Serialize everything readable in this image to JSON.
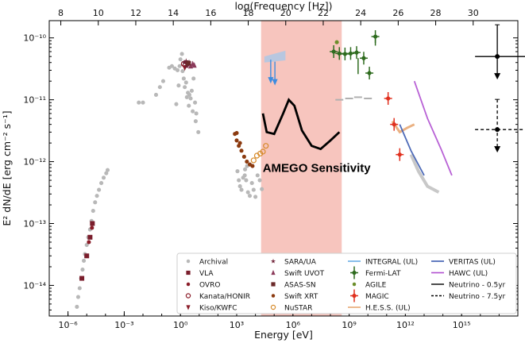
{
  "chart_data": {
    "type": "scatter",
    "xlabel": "Energy [eV]",
    "x2label": "log(Frequency [Hz])",
    "ylabel": "E² dN/dE [erg cm⁻² s⁻¹]",
    "xscale": "log",
    "yscale": "log",
    "xlim": [
      1e-07,
      1e+18
    ],
    "ylim": [
      3.2e-15,
      1.9e-10
    ],
    "x_ticks": [
      {
        "v": 1e-06,
        "label": "10⁻⁶"
      },
      {
        "v": 0.001,
        "label": "10⁻³"
      },
      {
        "v": 1.0,
        "label": "10⁰"
      },
      {
        "v": 1000.0,
        "label": "10³"
      },
      {
        "v": 1000000.0,
        "label": "10⁶"
      },
      {
        "v": 1000000000.0,
        "label": "10⁹"
      },
      {
        "v": 1000000000000.0,
        "label": "10¹²"
      },
      {
        "v": 1000000000000000.0,
        "label": "10¹⁵"
      }
    ],
    "x2_ticks": [
      "8",
      "10",
      "12",
      "14",
      "16",
      "18",
      "20",
      "22",
      "24",
      "26",
      "28",
      "30"
    ],
    "y_ticks": [
      {
        "v": 1e-14,
        "label": "10⁻¹⁴"
      },
      {
        "v": 1e-13,
        "label": "10⁻¹³"
      },
      {
        "v": 1e-12,
        "label": "10⁻¹²"
      },
      {
        "v": 1e-11,
        "label": "10⁻¹¹"
      },
      {
        "v": 1e-10,
        "label": "10⁻¹⁰"
      }
    ],
    "band": {
      "label": "AMEGO Sensitivity",
      "xmin": 20000.0,
      "xmax": 400000000.0,
      "color": "#f5b6ae"
    },
    "series": [
      {
        "name": "Archival",
        "marker": "circle",
        "color": "#b8b8b8",
        "points": [
          [
            3e-06,
            4.5e-15
          ],
          [
            3.5e-06,
            6.5e-15
          ],
          [
            4.2e-06,
            9e-15
          ],
          [
            5e-06,
            1.3e-14
          ],
          [
            6e-06,
            1.8e-14
          ],
          [
            7e-06,
            2.5e-14
          ],
          [
            8e-06,
            3.2e-14
          ],
          [
            1e-05,
            4.5e-14
          ],
          [
            1.2e-05,
            6e-14
          ],
          [
            1.5e-05,
            8e-14
          ],
          [
            1.8e-05,
            1.1e-13
          ],
          [
            2.2e-05,
            1.6e-13
          ],
          [
            2.8e-05,
            2.2e-13
          ],
          [
            3.5e-05,
            2.8e-13
          ],
          [
            4.5e-05,
            3.5e-13
          ],
          [
            6e-05,
            4.5e-13
          ],
          [
            8e-05,
            5.5e-13
          ],
          [
            0.00011,
            6.5e-13
          ],
          [
            0.00013,
            7.3e-13
          ],
          [
            0.006,
            9e-12
          ],
          [
            0.01,
            9e-12
          ],
          [
            0.05,
            1.2e-11
          ],
          [
            0.08,
            1.6e-11
          ],
          [
            0.12,
            2e-11
          ],
          [
            0.25,
            3.3e-11
          ],
          [
            0.35,
            3.5e-11
          ],
          [
            0.5,
            3.2e-11
          ],
          [
            0.7,
            3e-11
          ],
          [
            0.9,
            3.5e-11
          ],
          [
            1.0,
            4.5e-11
          ],
          [
            1.2,
            5.5e-11
          ],
          [
            1.5,
            2.2e-11
          ],
          [
            1.7,
            1.6e-11
          ],
          [
            2.0,
            1.9e-11
          ],
          [
            2.5,
            1.3e-11
          ],
          [
            3.0,
            1.2e-11
          ],
          [
            3.5,
            1.05e-11
          ],
          [
            4.0,
            1.4e-11
          ],
          [
            5.0,
            2.2e-11
          ],
          [
            6.0,
            9e-12
          ],
          [
            7.0,
            6e-12
          ],
          [
            0.6,
            8.5e-12
          ],
          [
            2.2,
            1.1e-11
          ],
          [
            0.8,
            1.7e-11
          ],
          [
            1.3,
            2.9e-11
          ],
          [
            2.8,
            8e-12
          ],
          [
            4.5,
            6.5e-12
          ],
          [
            6.5,
            4.5e-12
          ],
          [
            9.0,
            3e-12
          ],
          [
            1100.0,
            7e-13
          ],
          [
            1300.0,
            5e-13
          ],
          [
            1500.0,
            4e-13
          ],
          [
            1800.0,
            3.5e-13
          ],
          [
            2200.0,
            5.5e-13
          ],
          [
            2700.0,
            6e-13
          ],
          [
            3200.0,
            5e-13
          ],
          [
            4000.0,
            3.2e-13
          ],
          [
            5000.0,
            2.8e-13
          ],
          [
            6500.0,
            4.5e-13
          ],
          [
            8000.0,
            3.5e-13
          ],
          [
            10000.0,
            2.7e-13
          ],
          [
            13000.0,
            6e-13
          ],
          [
            17000.0,
            5e-13
          ],
          [
            22000.0,
            3.6e-13
          ],
          [
            2800.0,
            7.5e-13
          ],
          [
            3600.0,
            8.5e-13
          ]
        ]
      },
      {
        "name": "VLA",
        "marker": "square",
        "color": "#7a1e2c",
        "points": [
          [
            5.5e-06,
            1.3e-14
          ],
          [
            1e-05,
            3e-14
          ],
          [
            1.5e-05,
            6e-14
          ],
          [
            2e-05,
            1e-13
          ]
        ]
      },
      {
        "name": "OVRO",
        "marker": "circle",
        "color": "#8a1c28",
        "points": [
          [
            1.3e-05,
            5e-14
          ],
          [
            1.9e-05,
            8.5e-14
          ]
        ]
      },
      {
        "name": "Kanata/HONIR",
        "marker": "circle-open",
        "color": "#8a1c28",
        "points": [
          [
            1.5,
            3.8e-11
          ],
          [
            1.8,
            3.6e-11
          ]
        ]
      },
      {
        "name": "Kiso/KWFC",
        "marker": "triangle-down",
        "color": "#8a1c28",
        "points": [
          [
            1.7,
            3.3e-11
          ]
        ]
      },
      {
        "name": "SARA/UA",
        "marker": "star",
        "color": "#6e2036",
        "points": [
          [
            1.6,
            4e-11
          ],
          [
            2.0,
            4.2e-11
          ],
          [
            2.4,
            3.7e-11
          ],
          [
            2.9,
            4e-11
          ],
          [
            2.2,
            3.5e-11
          ]
        ]
      },
      {
        "name": "Swift UVOT",
        "marker": "triangle",
        "color": "#8b3a5a",
        "points": [
          [
            3.5,
            3.5e-11
          ],
          [
            4.5,
            3.8e-11
          ],
          [
            5.5,
            3.6e-11
          ]
        ]
      },
      {
        "name": "ASAS-SN",
        "marker": "square",
        "color": "#6b2a2a",
        "points": [
          [
            2.6,
            3.9e-11
          ]
        ]
      },
      {
        "name": "Swift XRT",
        "marker": "circle",
        "color": "#8b3a0f",
        "points": [
          [
            800,
            2.8e-12
          ],
          [
            1000,
            2.2e-12
          ],
          [
            1300,
            1.8e-12
          ],
          [
            1800,
            1.5e-12
          ],
          [
            2500,
            1.2e-12
          ],
          [
            3500,
            1e-12
          ],
          [
            5000,
            9e-13
          ],
          [
            7000,
            8.5e-13
          ],
          [
            1000,
            2.9e-12
          ],
          [
            1500,
            2e-12
          ]
        ]
      },
      {
        "name": "NuSTAR",
        "marker": "circle-open",
        "color": "#d68a2a",
        "points": [
          [
            8000,
            1.05e-12
          ],
          [
            12000,
            1.25e-12
          ],
          [
            18000,
            1.35e-12
          ],
          [
            25000,
            1.45e-12
          ],
          [
            36000,
            1.8e-12
          ]
        ]
      },
      {
        "name": "INTEGRAL (UL)",
        "marker": "line",
        "color": "#6aaee6",
        "points": [
          [
            30000.0,
            5e-11
          ],
          [
            400000.0,
            6.2e-11
          ]
        ]
      },
      {
        "name": "Fermi-LAT",
        "marker": "cross",
        "color": "#2e6b1e",
        "points": [
          [
            150000000.0,
            6e-11
          ],
          [
            300000000.0,
            5.6e-11
          ],
          [
            600000000.0,
            5.5e-11
          ],
          [
            1200000000.0,
            5.6e-11
          ],
          [
            2500000000.0,
            5.8e-11
          ],
          [
            6000000000.0,
            4.7e-11
          ],
          [
            12000000000.0,
            2.7e-11
          ],
          [
            25000000000.0,
            1.05e-10
          ]
        ]
      },
      {
        "name": "AGILE",
        "marker": "circle",
        "color": "#6b8e2a",
        "points": [
          [
            220000000.0,
            8.5e-11
          ]
        ]
      },
      {
        "name": "H.E.S.S. (UL)",
        "marker": "band",
        "color": "#e8a874",
        "points": [
          [
            200000000000.0,
            4.5e-12
          ],
          [
            500000000000.0,
            3e-12
          ],
          [
            1200000000000.0,
            3.5e-12
          ],
          [
            3000000000000.0,
            4e-12
          ]
        ]
      },
      {
        "name": "MAGIC",
        "marker": "cross",
        "color": "#e0301e",
        "points": [
          [
            120000000000.0,
            1.05e-11
          ],
          [
            250000000000.0,
            4e-12
          ],
          [
            500000000000.0,
            1.3e-12
          ]
        ]
      },
      {
        "name": "VERITAS (UL)",
        "marker": "line",
        "color": "#3b5bb0",
        "points": [
          [
            500000000000.0,
            4e-12
          ],
          [
            2000000000000.0,
            1.5e-12
          ],
          [
            10000000000000.0,
            6e-13
          ]
        ]
      },
      {
        "name": "HAWC (UL)",
        "marker": "line",
        "color": "#b050d0",
        "points": [
          [
            3000000000000.0,
            2e-11
          ],
          [
            15000000000000.0,
            5e-12
          ],
          [
            80000000000000.0,
            1.6e-12
          ],
          [
            300000000000000.0,
            6e-13
          ]
        ]
      },
      {
        "name": "Neutrino - 0.5yr",
        "marker": "ul-solid",
        "color": "#000000",
        "points": [
          [
            8e+16,
            5e-11
          ]
        ]
      },
      {
        "name": "Neutrino - 7.5yr",
        "marker": "ul-dashed",
        "color": "#000000",
        "points": [
          [
            8e+16,
            3.3e-12
          ]
        ]
      }
    ],
    "amego_curve": [
      [
        25000.0,
        6e-12
      ],
      [
        40000.0,
        3e-12
      ],
      [
        100000.0,
        2.8e-12
      ],
      [
        300000.0,
        6e-12
      ],
      [
        600000.0,
        1e-11
      ],
      [
        1200000.0,
        8e-12
      ],
      [
        3000000.0,
        3.2e-12
      ],
      [
        10000000.0,
        1.8e-12
      ],
      [
        30000000.0,
        1.6e-12
      ],
      [
        100000000.0,
        2.2e-12
      ],
      [
        300000000.0,
        3e-12
      ]
    ],
    "grey_fermi": [
      [
        300000000.0,
        1e-11
      ],
      [
        1000000000.0,
        1.05e-11
      ],
      [
        3000000000.0,
        1.1e-11
      ],
      [
        10000000000.0,
        1.05e-11
      ]
    ],
    "grey_tail": [
      [
        2000000000000.0,
        1.3e-12
      ],
      [
        5000000000000.0,
        7e-13
      ],
      [
        15000000000000.0,
        4e-13
      ],
      [
        60000000000000.0,
        3.2e-13
      ]
    ],
    "legend": {
      "col1": [
        "Archival",
        "VLA",
        "OVRO",
        "Kanata/HONIR",
        "Kiso/KWFC"
      ],
      "col2": [
        "SARA/UA",
        "Swift UVOT",
        "ASAS-SN",
        "Swift XRT",
        "NuSTAR"
      ],
      "col3": [
        "INTEGRAL (UL)",
        "Fermi-LAT",
        "AGILE",
        "MAGIC",
        "H.E.S.S. (UL)"
      ],
      "col4": [
        "VERITAS (UL)",
        "HAWC (UL)",
        "Neutrino - 0.5yr",
        "Neutrino - 7.5yr"
      ]
    }
  }
}
